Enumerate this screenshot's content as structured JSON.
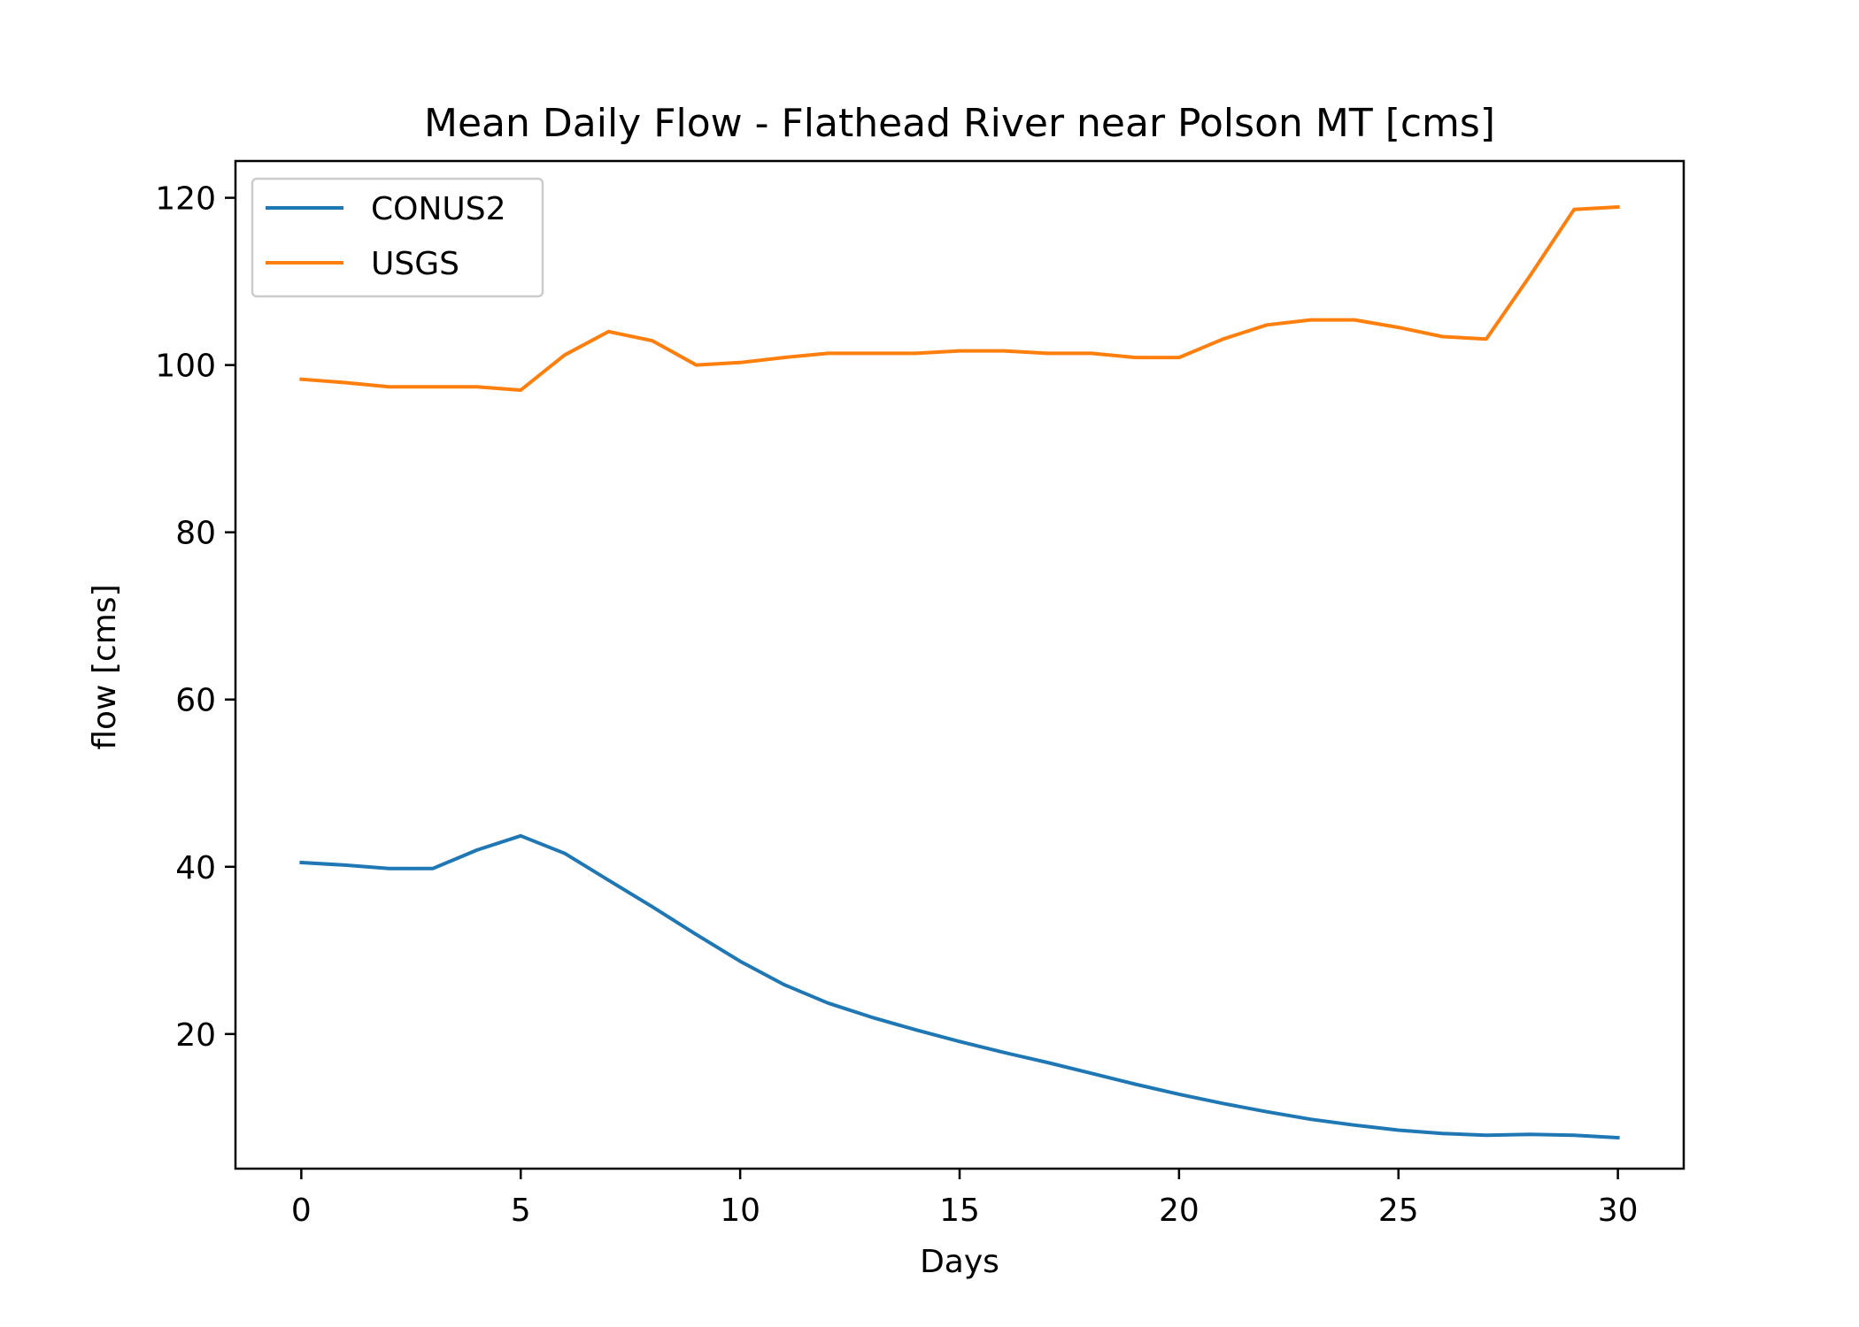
{
  "chart_data": {
    "type": "line",
    "title": "Mean Daily Flow - Flathead River near Polson MT [cms]",
    "xlabel": "Days",
    "ylabel": "flow [cms]",
    "xlim": [
      -1.5,
      31.5
    ],
    "ylim": [
      3.9,
      124.4
    ],
    "xticks": [
      0,
      5,
      10,
      15,
      20,
      25,
      30
    ],
    "yticks": [
      20,
      40,
      60,
      80,
      100,
      120
    ],
    "grid": false,
    "legend": "upper left",
    "x": [
      0,
      1,
      2,
      3,
      4,
      5,
      6,
      7,
      8,
      9,
      10,
      11,
      12,
      13,
      14,
      15,
      16,
      17,
      18,
      19,
      20,
      21,
      22,
      23,
      24,
      25,
      26,
      27,
      28,
      29,
      30
    ],
    "series": [
      {
        "name": "CONUS2",
        "color": "#1f77b4",
        "values": [
          40.5,
          40.2,
          39.8,
          39.8,
          42.0,
          43.7,
          41.6,
          38.4,
          35.2,
          31.9,
          28.7,
          25.9,
          23.7,
          22.0,
          20.5,
          19.1,
          17.8,
          16.6,
          15.3,
          14.0,
          12.8,
          11.7,
          10.7,
          9.8,
          9.1,
          8.5,
          8.1,
          7.9,
          8.0,
          7.9,
          7.6
        ]
      },
      {
        "name": "USGS",
        "color": "#ff7f0e",
        "values": [
          98.3,
          97.9,
          97.4,
          97.4,
          97.4,
          97.0,
          101.2,
          104.0,
          102.9,
          100.0,
          100.3,
          100.9,
          101.4,
          101.4,
          101.4,
          101.7,
          101.7,
          101.4,
          101.4,
          100.9,
          100.9,
          103.1,
          104.8,
          105.4,
          105.4,
          104.5,
          103.4,
          103.1,
          110.7,
          118.6,
          118.9
        ]
      }
    ]
  }
}
